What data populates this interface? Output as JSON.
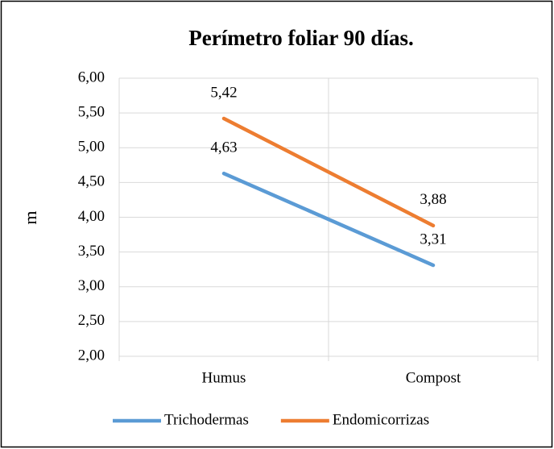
{
  "chart_data": {
    "type": "line",
    "title": "Perímetro foliar 90 días.",
    "y_label": "m",
    "categories": [
      "Humus",
      "Compost"
    ],
    "series": [
      {
        "name": "Trichodermas",
        "color": "#5b9bd5",
        "values": [
          4.63,
          3.31
        ],
        "value_labels": [
          "4,63",
          "3,31"
        ]
      },
      {
        "name": "Endomicorrizas",
        "color": "#ed7d31",
        "values": [
          5.42,
          3.88
        ],
        "value_labels": [
          "5,42",
          "3,88"
        ]
      }
    ],
    "ylim": [
      2,
      6
    ],
    "yticks": [
      {
        "value": 2,
        "label": "2,00"
      },
      {
        "value": 2.5,
        "label": "2,50"
      },
      {
        "value": 3,
        "label": "3,00"
      },
      {
        "value": 3.5,
        "label": "3,50"
      },
      {
        "value": 4,
        "label": "4,00"
      },
      {
        "value": 4.5,
        "label": "4,50"
      },
      {
        "value": 5,
        "label": "5,00"
      },
      {
        "value": 5.5,
        "label": "5,50"
      },
      {
        "value": 6,
        "label": "6,00"
      }
    ],
    "grid": true,
    "legend": "bottom"
  }
}
